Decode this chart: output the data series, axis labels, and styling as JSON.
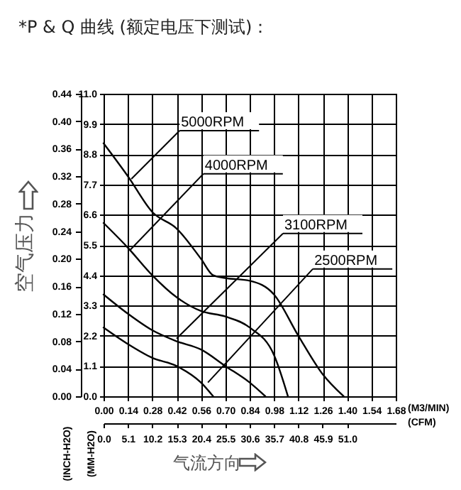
{
  "chart_data": {
    "type": "line",
    "title": "*P & Q 曲线 (额定电压下测试)：",
    "xlabel": "(M3/MIN)",
    "ylabel": "(MM-H2O)",
    "y2label": "(INCH-H2O)",
    "x2label": "(CFM)",
    "xlim": [
      0,
      1.68
    ],
    "ylim": [
      0,
      11
    ],
    "y2lim": [
      0,
      0.44
    ],
    "x2lim": [
      0,
      61.2
    ],
    "xticks": [
      {
        "value": 0,
        "label": "0.00"
      },
      {
        "value": 0.14,
        "label": "0.14"
      },
      {
        "value": 0.28,
        "label": "0.28"
      },
      {
        "value": 0.42,
        "label": "0.42"
      },
      {
        "value": 0.56,
        "label": "0.56"
      },
      {
        "value": 0.7,
        "label": "0.70"
      },
      {
        "value": 0.84,
        "label": "0.84"
      },
      {
        "value": 0.98,
        "label": "0.98"
      },
      {
        "value": 1.12,
        "label": "1.12"
      },
      {
        "value": 1.26,
        "label": "1.26"
      },
      {
        "value": 1.4,
        "label": "1.40"
      },
      {
        "value": 1.54,
        "label": "1.54"
      },
      {
        "value": 1.68,
        "label": "1.68"
      }
    ],
    "yticks": [
      {
        "value": 0,
        "label": "0.0"
      },
      {
        "value": 1.1,
        "label": "1.1"
      },
      {
        "value": 2.2,
        "label": "2.2"
      },
      {
        "value": 3.3,
        "label": "3.3"
      },
      {
        "value": 4.4,
        "label": "4.4"
      },
      {
        "value": 5.5,
        "label": "5.5"
      },
      {
        "value": 6.6,
        "label": "6.6"
      },
      {
        "value": 7.7,
        "label": "7.7"
      },
      {
        "value": 8.8,
        "label": "8.8"
      },
      {
        "value": 9.9,
        "label": "9.9"
      },
      {
        "value": 11,
        "label": "11.0"
      }
    ],
    "y2ticks": [
      {
        "value": 0,
        "label": "0.00"
      },
      {
        "value": 0.04,
        "label": "0.04"
      },
      {
        "value": 0.08,
        "label": "0.08"
      },
      {
        "value": 0.12,
        "label": "0.12"
      },
      {
        "value": 0.16,
        "label": "0.16"
      },
      {
        "value": 0.2,
        "label": "0.20"
      },
      {
        "value": 0.24,
        "label": "0.24"
      },
      {
        "value": 0.28,
        "label": "0.28"
      },
      {
        "value": 0.32,
        "label": "0.32"
      },
      {
        "value": 0.36,
        "label": "0.36"
      },
      {
        "value": 0.4,
        "label": "0.40"
      },
      {
        "value": 0.44,
        "label": "0.44"
      }
    ],
    "x2ticks": [
      {
        "value": 0,
        "label": "0.0"
      },
      {
        "value": 5.1,
        "label": "5.1"
      },
      {
        "value": 10.2,
        "label": "10.2"
      },
      {
        "value": 15.3,
        "label": "15.3"
      },
      {
        "value": 20.4,
        "label": "20.4"
      },
      {
        "value": 25.5,
        "label": "25.5"
      },
      {
        "value": 30.6,
        "label": "30.6"
      },
      {
        "value": 35.7,
        "label": "35.7"
      },
      {
        "value": 40.8,
        "label": "40.8"
      },
      {
        "value": 45.9,
        "label": "45.9"
      },
      {
        "value": 51,
        "label": "51.0"
      }
    ],
    "grid": true,
    "series": [
      {
        "color": "#000000",
        "x": [
          0,
          0.14,
          0.28,
          0.42,
          0.56,
          0.63,
          0.7,
          0.84,
          0.98,
          1.12,
          1.26,
          1.38
        ],
        "values": [
          9.2,
          8.0,
          6.7,
          6.1,
          5.0,
          4.4,
          4.3,
          4.2,
          3.7,
          2.2,
          0.8,
          0
        ]
      },
      {
        "color": "#000000",
        "x": [
          0,
          0.14,
          0.28,
          0.42,
          0.56,
          0.7,
          0.84,
          0.98,
          1.06
        ],
        "values": [
          6.3,
          5.4,
          4.4,
          3.6,
          3.1,
          2.9,
          2.5,
          1.5,
          0
        ]
      },
      {
        "color": "#000000",
        "x": [
          0,
          0.14,
          0.28,
          0.42,
          0.56,
          0.7,
          0.84,
          0.93
        ],
        "values": [
          3.7,
          3.0,
          2.4,
          2.0,
          1.7,
          1.1,
          0.5,
          0
        ]
      },
      {
        "color": "#000000",
        "x": [
          0,
          0.14,
          0.28,
          0.42,
          0.56,
          0.63
        ],
        "values": [
          2.5,
          1.9,
          1.4,
          1.1,
          0.5,
          0
        ]
      }
    ],
    "annotations": [
      {
        "text": "5000RPM",
        "x": 0.16,
        "y": 7.9
      },
      {
        "text": "4000RPM",
        "x": 0.15,
        "y": 5.3
      },
      {
        "text": "3100RPM",
        "x": 0.42,
        "y": 2.1
      },
      {
        "text": "2500RPM",
        "x": 0.6,
        "y": 0.5
      },
      "空气压力",
      "气流方向"
    ]
  }
}
